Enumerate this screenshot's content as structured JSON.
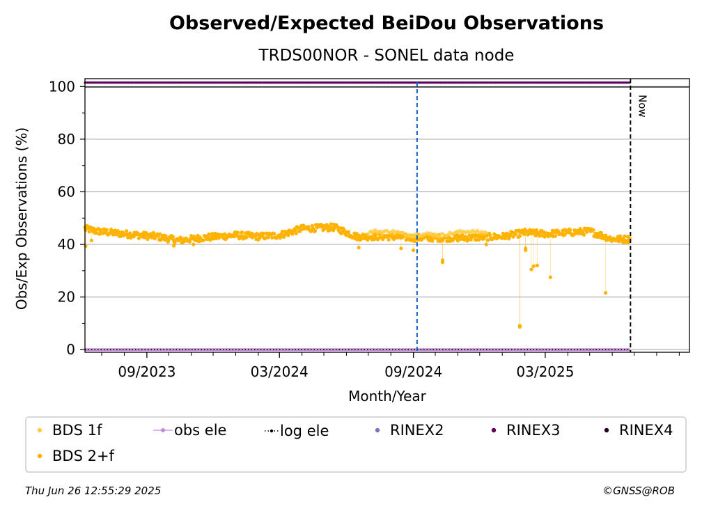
{
  "chart_data": {
    "type": "scatter",
    "title": "Observed/Expected BeiDou Observations",
    "subtitle": "TRDS00NOR - SONEL data node",
    "xlabel": "Month/Year",
    "ylabel": "Obs/Exp Observations (%)",
    "x_range": [
      "2023-06-08",
      "2025-09-15"
    ],
    "ylim": [
      -1,
      103
    ],
    "y_ticks": [
      0,
      20,
      40,
      60,
      80,
      100
    ],
    "x_tick_labels": [
      "09/2023",
      "03/2024",
      "09/2024",
      "03/2025"
    ],
    "x_tick_dates": [
      "2023-09-01",
      "2024-03-01",
      "2024-09-01",
      "2025-03-01"
    ],
    "grid": "horizontal",
    "now_date": "2025-06-26",
    "now_label": "Now",
    "marker_date": "2024-09-06",
    "colors": {
      "bds_1f": "#ffcc44",
      "bds_2f": "#ffb300",
      "obs_ele": "#c48bd4",
      "log_ele": "#000000",
      "rinex2": "#7f76b8",
      "rinex3": "#5c005c",
      "rinex4": "#200020",
      "marker_line": "#1060c0",
      "grid": "#b0b0b0"
    },
    "series": [
      {
        "name": "BDS 2+f",
        "key": "bds_2f",
        "baseline": [
          [
            "2023-06-08",
            46
          ],
          [
            "2023-06-25",
            45
          ],
          [
            "2023-08-01",
            44
          ],
          [
            "2023-09-15",
            43
          ],
          [
            "2023-10-15",
            41.5
          ],
          [
            "2023-11-15",
            42.5
          ],
          [
            "2024-01-01",
            43.5
          ],
          [
            "2024-02-01",
            43
          ],
          [
            "2024-03-01",
            43.5
          ],
          [
            "2024-04-01",
            46
          ],
          [
            "2024-05-15",
            46.5
          ],
          [
            "2024-06-15",
            43
          ],
          [
            "2024-08-01",
            43
          ],
          [
            "2024-09-01",
            42.5
          ],
          [
            "2024-11-01",
            42.5
          ],
          [
            "2025-01-01",
            43
          ],
          [
            "2025-02-01",
            44.5
          ],
          [
            "2025-03-01",
            44
          ],
          [
            "2025-04-01",
            44.5
          ],
          [
            "2025-05-01",
            45
          ],
          [
            "2025-06-01",
            42
          ],
          [
            "2025-06-25",
            42
          ]
        ],
        "outliers": [
          [
            "2023-06-09",
            39.3
          ],
          [
            "2023-06-17",
            41.5
          ],
          [
            "2023-10-08",
            39.5
          ],
          [
            "2023-11-04",
            40
          ],
          [
            "2024-06-18",
            38.8
          ],
          [
            "2024-08-15",
            38.5
          ],
          [
            "2024-09-01",
            37.8
          ],
          [
            "2024-10-11",
            34
          ],
          [
            "2024-10-11",
            33.2
          ],
          [
            "2024-12-10",
            40
          ],
          [
            "2025-01-25",
            9.1
          ],
          [
            "2025-01-25",
            8.6
          ],
          [
            "2025-02-02",
            38.5
          ],
          [
            "2025-02-02",
            37.8
          ],
          [
            "2025-02-13",
            31.7
          ],
          [
            "2025-02-10",
            30.5
          ],
          [
            "2025-02-18",
            32
          ],
          [
            "2025-03-08",
            27.5
          ],
          [
            "2025-05-23",
            21.6
          ]
        ]
      },
      {
        "name": "BDS 1f",
        "key": "bds_1f",
        "values": [
          [
            "2024-07-01",
            44.5
          ],
          [
            "2024-07-10",
            45
          ],
          [
            "2024-07-20",
            44.8
          ],
          [
            "2024-08-01",
            45
          ],
          [
            "2024-08-10",
            44.6
          ],
          [
            "2024-08-20",
            43.8
          ],
          [
            "2024-09-01",
            43.6
          ],
          [
            "2024-09-10",
            43.8
          ],
          [
            "2024-09-25",
            44
          ],
          [
            "2024-10-05",
            43.4
          ],
          [
            "2024-11-10",
            45
          ],
          [
            "2024-12-10",
            44.5
          ]
        ]
      },
      {
        "name": "RINEX3",
        "key": "rinex3",
        "level": 101.5,
        "range": [
          "2023-06-08",
          "2025-06-25"
        ]
      },
      {
        "name": "obs ele",
        "key": "obs_ele",
        "level": 0,
        "range": [
          "2023-06-08",
          "2025-06-25"
        ]
      },
      {
        "name": "log ele",
        "key": "log_ele",
        "level": 0,
        "range": [
          "2023-06-08",
          "2025-06-25"
        ]
      },
      {
        "name": "RINEX2",
        "key": "rinex2"
      },
      {
        "name": "RINEX4",
        "key": "rinex4"
      }
    ],
    "legend": {
      "placement": "bottom",
      "entries": [
        {
          "label": "BDS 1f",
          "key": "bds_1f",
          "marker": "dot"
        },
        {
          "label": "obs ele",
          "key": "obs_ele",
          "marker": "line-dot"
        },
        {
          "label": "log ele",
          "key": "log_ele",
          "marker": "dotted-line"
        },
        {
          "label": "RINEX2",
          "key": "rinex2",
          "marker": "dot"
        },
        {
          "label": "RINEX3",
          "key": "rinex3",
          "marker": "dot"
        },
        {
          "label": "RINEX4",
          "key": "rinex4",
          "marker": "dot"
        },
        {
          "label": "BDS 2+f",
          "key": "bds_2f",
          "marker": "dot"
        }
      ]
    }
  },
  "footer": {
    "timestamp": "Thu Jun 26 12:55:29 2025",
    "credit": "©GNSS@ROB"
  }
}
